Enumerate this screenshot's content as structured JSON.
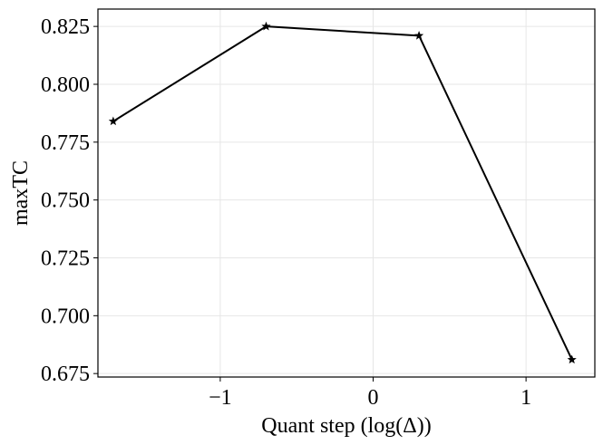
{
  "chart_data": {
    "type": "line",
    "title": "",
    "xlabel": "Quant step (log(Δ))",
    "ylabel": "maxTC",
    "xlim": [
      -1.8,
      1.45
    ],
    "ylim": [
      0.6735,
      0.8325
    ],
    "xticks": [
      -1,
      0,
      1
    ],
    "xtick_labels": [
      "−1",
      "0",
      "1"
    ],
    "yticks": [
      0.675,
      0.7,
      0.725,
      0.75,
      0.775,
      0.8,
      0.825
    ],
    "ytick_labels": [
      "0.675",
      "0.700",
      "0.725",
      "0.750",
      "0.775",
      "0.800",
      "0.825"
    ],
    "grid": true,
    "series": [
      {
        "marker": "star",
        "color": "#000000",
        "x": [
          -1.7,
          -0.7,
          0.3,
          1.3
        ],
        "y": [
          0.784,
          0.825,
          0.821,
          0.681
        ]
      }
    ]
  }
}
